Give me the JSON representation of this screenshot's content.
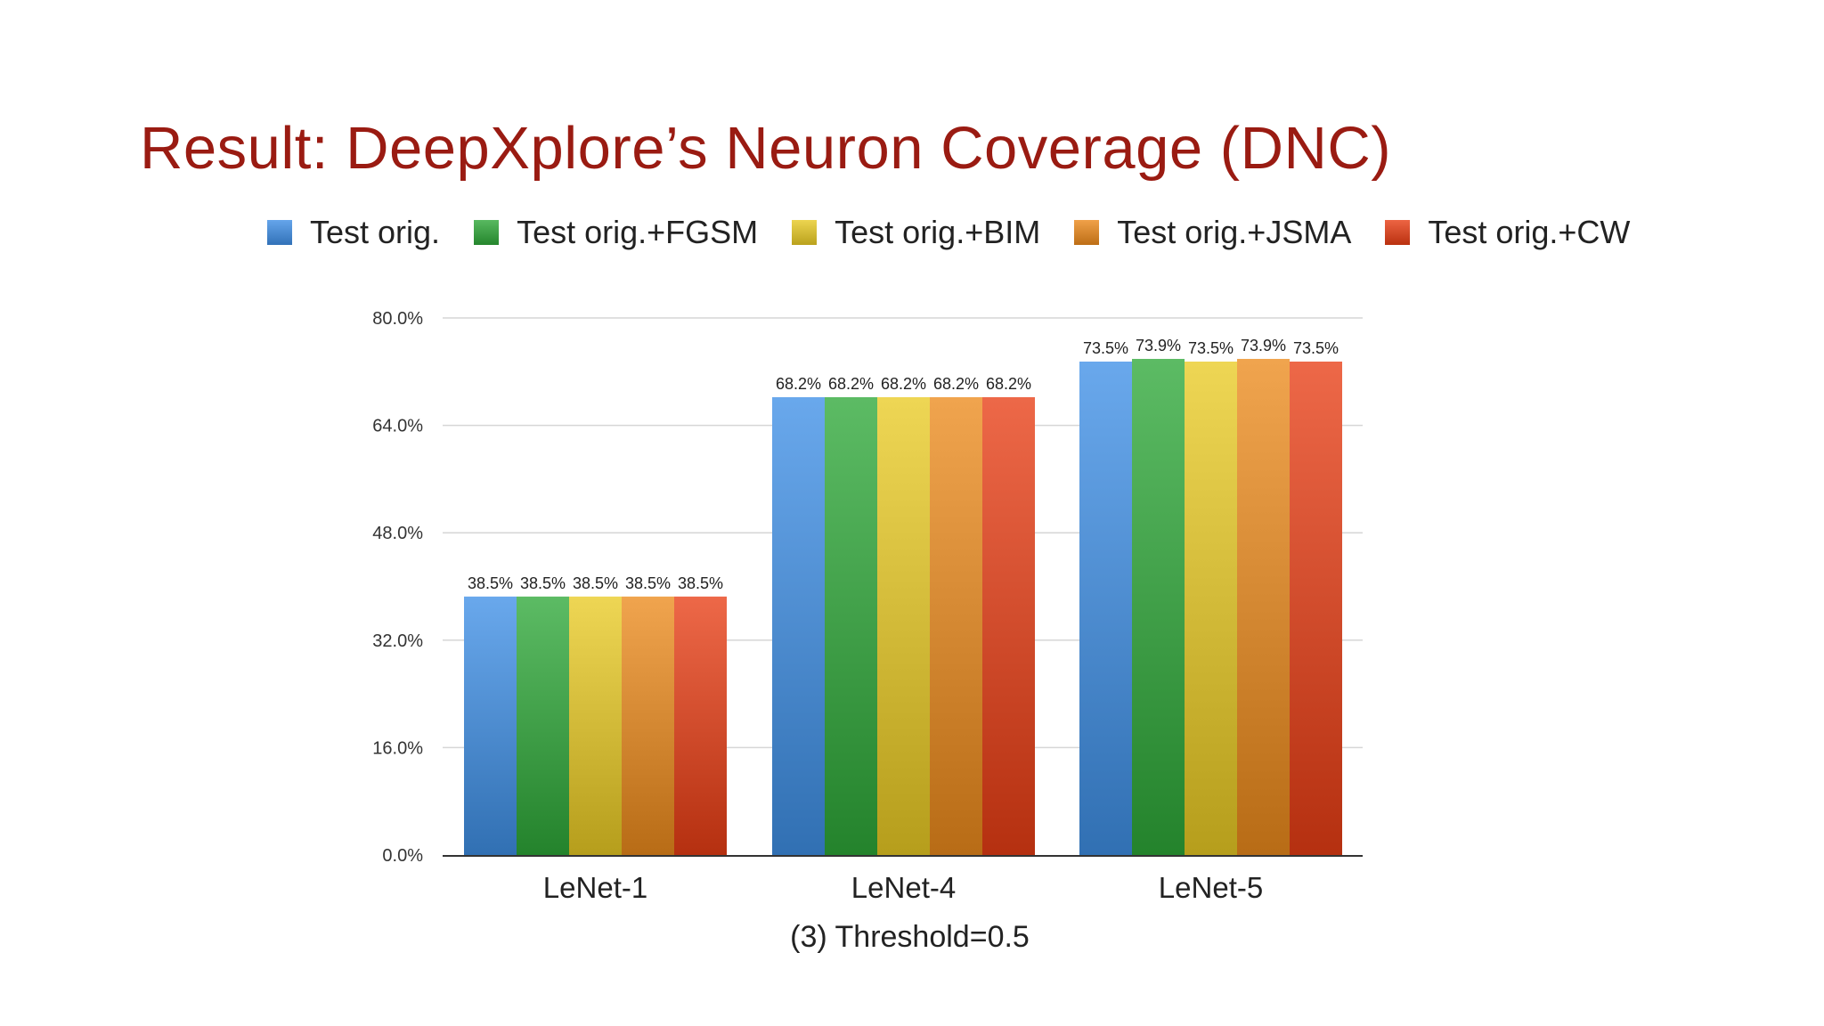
{
  "slide": {
    "title": "Result: DeepXplore’s Neuron Coverage (DNC)"
  },
  "colors": {
    "title": "#9a1b12",
    "series": [
      "#3f8fe6",
      "#2ea838",
      "#e9cb24",
      "#ec8a1c",
      "#e83d14"
    ]
  },
  "chart_data": {
    "type": "bar",
    "categories": [
      "LeNet-1",
      "LeNet-4",
      "LeNet-5"
    ],
    "series": [
      {
        "name": "Test orig.",
        "values": [
          38.5,
          68.2,
          73.5
        ],
        "labels": [
          "38.5%",
          "68.2%",
          "73.5%"
        ]
      },
      {
        "name": "Test orig.+FGSM",
        "values": [
          38.5,
          68.2,
          73.9
        ],
        "labels": [
          "38.5%",
          "68.2%",
          "73.9%"
        ]
      },
      {
        "name": "Test orig.+BIM",
        "values": [
          38.5,
          68.2,
          73.5
        ],
        "labels": [
          "38.5%",
          "68.2%",
          "73.5%"
        ]
      },
      {
        "name": "Test orig.+JSMA",
        "values": [
          38.5,
          68.2,
          73.9
        ],
        "labels": [
          "38.5%",
          "68.2%",
          "73.9%"
        ]
      },
      {
        "name": "Test orig.+CW",
        "values": [
          38.5,
          68.2,
          73.5
        ],
        "labels": [
          "38.5%",
          "68.2%",
          "73.5%"
        ]
      }
    ],
    "xlabel": "(3) Threshold=0.5",
    "ylabel": "",
    "ylim": [
      0,
      80
    ],
    "yticks": [
      0,
      16,
      32,
      48,
      64,
      80
    ],
    "ytick_labels": [
      "0.0%",
      "16.0%",
      "32.0%",
      "48.0%",
      "64.0%",
      "80.0%"
    ],
    "grid": true,
    "legend_position": "top"
  }
}
